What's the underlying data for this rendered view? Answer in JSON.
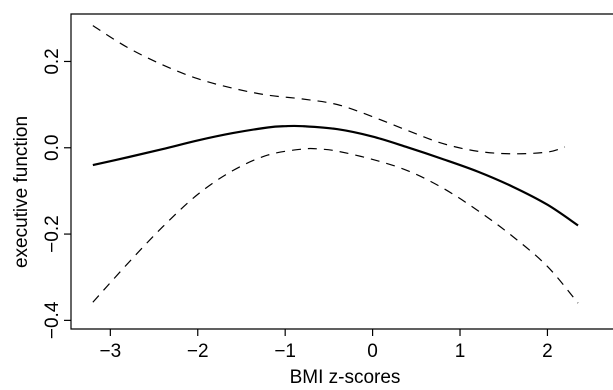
{
  "chart_data": {
    "type": "line",
    "xlabel": "BMI z-scores",
    "ylabel": "executive function",
    "xlim": [
      -3.45,
      2.75
    ],
    "ylim": [
      -0.42,
      0.31
    ],
    "x_ticks": [
      -3,
      -2,
      -1,
      0,
      1,
      2
    ],
    "x_tick_labels": [
      "−3",
      "−2",
      "−1",
      "0",
      "1",
      "2"
    ],
    "y_ticks": [
      -0.4,
      -0.2,
      0.0,
      0.2
    ],
    "y_tick_labels": [
      "−0.4",
      "−0.2",
      "0.0",
      "0.2"
    ],
    "grid": false,
    "series": [
      {
        "role": "estimate",
        "style": "solid",
        "x": [
          -3.2,
          -2.8,
          -2.4,
          -2.0,
          -1.6,
          -1.2,
          -1.0,
          -0.8,
          -0.4,
          0.0,
          0.4,
          0.8,
          1.2,
          1.6,
          2.0,
          2.35
        ],
        "y": [
          -0.04,
          -0.022,
          -0.003,
          0.017,
          0.034,
          0.047,
          0.05,
          0.05,
          0.043,
          0.026,
          0.001,
          -0.026,
          -0.055,
          -0.09,
          -0.132,
          -0.18
        ]
      },
      {
        "role": "upper-bound",
        "style": "dashed",
        "x": [
          -3.2,
          -2.8,
          -2.4,
          -2.0,
          -1.6,
          -1.2,
          -0.8,
          -0.4,
          0.0,
          0.4,
          0.8,
          1.2,
          1.6,
          2.0,
          2.2
        ],
        "y": [
          0.283,
          0.232,
          0.192,
          0.16,
          0.138,
          0.122,
          0.113,
          0.1,
          0.072,
          0.04,
          0.01,
          -0.008,
          -0.014,
          -0.01,
          0.002
        ]
      },
      {
        "role": "lower-bound",
        "style": "dashed",
        "x": [
          -3.2,
          -2.8,
          -2.4,
          -2.0,
          -1.6,
          -1.2,
          -0.8,
          -0.6,
          -0.4,
          0.0,
          0.4,
          0.8,
          1.2,
          1.6,
          2.0,
          2.35
        ],
        "y": [
          -0.358,
          -0.268,
          -0.183,
          -0.108,
          -0.053,
          -0.017,
          -0.003,
          -0.003,
          -0.008,
          -0.027,
          -0.053,
          -0.093,
          -0.145,
          -0.205,
          -0.275,
          -0.36
        ]
      }
    ]
  }
}
